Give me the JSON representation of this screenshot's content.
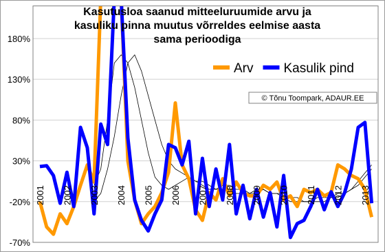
{
  "chart_data": {
    "type": "line",
    "title": [
      "Kasutusloa saanud mitteeluruumide arvu ja",
      "kasuliku pinna muutus võrreldes eelmise aasta",
      "sama perioodiga"
    ],
    "annotation": "© Tõnu Toompark, ADAUR.EE",
    "categories": [
      "2001",
      null,
      null,
      null,
      "2002",
      null,
      null,
      null,
      "2003",
      null,
      null,
      null,
      "2004",
      null,
      null,
      null,
      "2005",
      null,
      null,
      null,
      "2006",
      null,
      null,
      null,
      "2007",
      null,
      null,
      null,
      "2008",
      null,
      null,
      null,
      "2009",
      null,
      null,
      null,
      "2010",
      null,
      null,
      null,
      "2011",
      null,
      null,
      null,
      "2012",
      null,
      null,
      null,
      "2013",
      null
    ],
    "ylim": [
      -70,
      220
    ],
    "yticks": [
      {
        "value": -70,
        "label": "-70%"
      },
      {
        "value": -20,
        "label": "-20%"
      },
      {
        "value": 30,
        "label": "30%"
      },
      {
        "value": 80,
        "label": "80%"
      },
      {
        "value": 130,
        "label": "130%"
      },
      {
        "value": 180,
        "label": "180%"
      }
    ],
    "grid": true,
    "legend": "top-right",
    "series": [
      {
        "color": "#000000",
        "values": [
          null,
          null,
          null,
          null,
          null,
          null,
          null,
          null,
          0,
          20,
          80,
          150,
          160,
          150,
          120,
          80,
          40,
          10,
          0,
          -5,
          0,
          5,
          10,
          5,
          0,
          -5,
          -5,
          0,
          0,
          -5,
          -5,
          -10,
          -10,
          -5,
          -10,
          -10,
          -10,
          -15,
          -15,
          -20,
          -20,
          -15,
          -15,
          -15,
          -10,
          -10,
          -5,
          5,
          15,
          25
        ]
      },
      {
        "color": "#000000",
        "values": [
          null,
          null,
          null,
          null,
          null,
          null,
          null,
          null,
          -20,
          -10,
          20,
          60,
          110,
          150,
          160,
          140,
          110,
          80,
          50,
          30,
          20,
          15,
          10,
          5,
          5,
          0,
          -5,
          -5,
          -5,
          -10,
          -10,
          -10,
          -5,
          -5,
          -10,
          -10,
          -15,
          -20,
          -20,
          -20,
          -20,
          -20,
          -20,
          -15,
          -15,
          -10,
          -5,
          0,
          10,
          20
        ]
      },
      {
        "name": "Arv",
        "color": "#ff9900",
        "values": [
          -20,
          -51,
          -60,
          -35,
          -47,
          -26,
          0,
          25,
          4,
          230,
          230,
          230,
          230,
          30,
          -18,
          -47,
          -35,
          -26,
          -9,
          16,
          101,
          25,
          8,
          -30,
          -43,
          -9,
          -18,
          8,
          -13,
          4,
          -9,
          -13,
          -13,
          0,
          -5,
          4,
          -18,
          -13,
          -26,
          -5,
          -9,
          -5,
          -13,
          -9,
          25,
          20,
          12,
          8,
          -5,
          -39
        ]
      },
      {
        "name": "Kasulik pind",
        "color": "#0000ff",
        "values": [
          23,
          24,
          12,
          -22,
          16,
          -26,
          71,
          46,
          -35,
          75,
          50,
          230,
          230,
          58,
          -18,
          -43,
          -56,
          -35,
          -18,
          50,
          46,
          25,
          54,
          -35,
          33,
          -26,
          20,
          -18,
          50,
          -35,
          0,
          -41,
          -5,
          -39,
          -9,
          -51,
          12,
          -64,
          -47,
          -43,
          -26,
          -5,
          -30,
          -8,
          -26,
          -9,
          20,
          71,
          77,
          -22
        ]
      }
    ]
  }
}
